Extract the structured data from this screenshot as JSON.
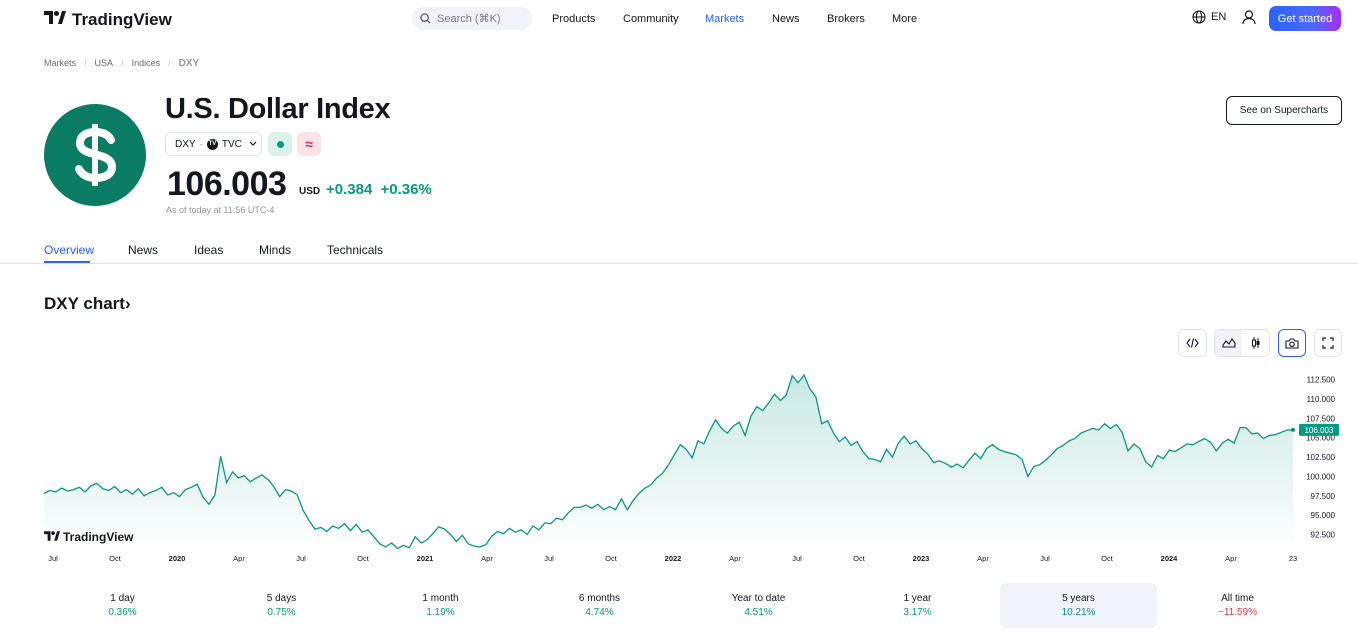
{
  "nav": {
    "logo_text": "TradingView",
    "search_placeholder": "Search (⌘K)",
    "items": [
      "Products",
      "Community",
      "Markets",
      "News",
      "Brokers",
      "More"
    ],
    "active": "Markets",
    "lang": "EN",
    "cta": "Get started"
  },
  "breadcrumb": [
    "Markets",
    "USA",
    "Indices",
    "DXY"
  ],
  "header": {
    "title": "U.S. Dollar Index",
    "symbol": "DXY",
    "exchange": "TVC",
    "price": "106.003",
    "currency": "USD",
    "change": "+0.384",
    "change_pct": "+0.36%",
    "as_of": "As of today at 11:56 UTC-4",
    "supercharts_button": "See on Supercharts"
  },
  "tabs": [
    "Overview",
    "News",
    "Ideas",
    "Minds",
    "Technicals"
  ],
  "active_tab": "Overview",
  "chart_section": {
    "title": "DXY chart",
    "watermark": "TradingView",
    "tools": [
      "embed-icon",
      "area-chart-icon",
      "candles-icon",
      "camera-icon",
      "fullscreen-icon"
    ]
  },
  "chart_data": {
    "type": "area",
    "x_ticks": [
      "Jul",
      "Oct",
      "2020",
      "Apr",
      "Jul",
      "Oct",
      "2021",
      "Apr",
      "Jul",
      "Oct",
      "2022",
      "Apr",
      "Jul",
      "Oct",
      "2023",
      "Apr",
      "Jul",
      "Oct",
      "2024",
      "Apr",
      "23"
    ],
    "y_ticks": [
      "112.500",
      "110.000",
      "107.500",
      "105.000",
      "102.500",
      "100.000",
      "97.500",
      "95.000",
      "92.500"
    ],
    "ylim": [
      90.5,
      114
    ],
    "last_value": "106.003",
    "colors": {
      "line": "#089981",
      "label_bg": "#089981"
    },
    "series": [
      {
        "values": [
          97.8,
          98.2,
          98.0,
          98.5,
          98.1,
          98.3,
          98.6,
          98.0,
          98.8,
          99.1,
          98.4,
          98.2,
          98.7,
          97.9,
          98.3,
          97.7,
          98.4,
          97.5,
          97.9,
          98.2,
          98.6,
          97.6,
          97.9,
          97.4,
          98.3,
          98.6,
          99.0,
          97.3,
          96.4,
          97.6,
          102.6,
          99.2,
          100.6,
          99.8,
          100.1,
          99.3,
          99.8,
          100.2,
          99.6,
          98.7,
          97.4,
          98.3,
          98.1,
          97.6,
          95.6,
          94.3,
          93.2,
          93.4,
          92.9,
          93.6,
          93.3,
          93.9,
          93.0,
          93.8,
          92.8,
          93.1,
          92.2,
          91.3,
          90.9,
          91.4,
          90.7,
          91.1,
          90.8,
          92.2,
          91.4,
          91.8,
          92.6,
          93.5,
          93.2,
          92.5,
          91.6,
          92.4,
          91.3,
          91.0,
          90.9,
          91.2,
          92.3,
          92.9,
          92.6,
          93.3,
          92.8,
          93.1,
          92.5,
          93.6,
          93.1,
          94.0,
          93.9,
          94.6,
          94.4,
          95.3,
          96.0,
          96.0,
          96.3,
          95.9,
          96.4,
          95.7,
          96.1,
          95.7,
          97.1,
          95.7,
          96.9,
          97.8,
          98.5,
          98.9,
          99.8,
          100.4,
          101.5,
          102.8,
          104.1,
          103.5,
          102.4,
          104.6,
          104.2,
          105.9,
          107.3,
          106.2,
          105.6,
          106.5,
          107.0,
          105.3,
          107.8,
          109.0,
          108.5,
          109.5,
          110.6,
          109.8,
          110.5,
          113.0,
          112.1,
          113.1,
          111.3,
          110.3,
          106.8,
          107.2,
          105.6,
          104.5,
          105.1,
          104.0,
          104.5,
          103.2,
          102.3,
          102.2,
          101.9,
          103.5,
          102.5,
          104.3,
          105.2,
          104.2,
          104.6,
          103.6,
          102.9,
          101.8,
          102.0,
          101.7,
          101.2,
          101.6,
          101.1,
          102.1,
          103.0,
          102.3,
          103.6,
          104.1,
          103.5,
          103.2,
          103.0,
          102.8,
          102.2,
          100.0,
          101.3,
          101.5,
          102.1,
          102.8,
          103.6,
          104.0,
          104.6,
          104.9,
          105.6,
          105.9,
          106.2,
          106.0,
          106.8,
          106.2,
          106.7,
          105.7,
          103.3,
          104.2,
          103.6,
          101.9,
          101.2,
          102.7,
          102.3,
          103.4,
          103.2,
          103.7,
          104.2,
          104.1,
          104.5,
          104.9,
          104.4,
          103.3,
          104.3,
          104.8,
          104.3,
          106.3,
          106.3,
          105.5,
          105.6,
          104.9,
          105.3,
          105.4,
          105.7,
          106.0,
          106.003
        ]
      }
    ]
  },
  "periods": [
    {
      "label": "1 day",
      "value": "0.36%",
      "color": "#089981"
    },
    {
      "label": "5 days",
      "value": "0.75%",
      "color": "#089981"
    },
    {
      "label": "1 month",
      "value": "1.19%",
      "color": "#089981"
    },
    {
      "label": "6 months",
      "value": "4.74%",
      "color": "#089981"
    },
    {
      "label": "Year to date",
      "value": "4.51%",
      "color": "#089981"
    },
    {
      "label": "1 year",
      "value": "3.17%",
      "color": "#089981"
    },
    {
      "label": "5 years",
      "value": "10.21%",
      "color": "#089981"
    },
    {
      "label": "All time",
      "value": "−11.59%",
      "color": "#f23645"
    }
  ],
  "active_period": "5 years"
}
